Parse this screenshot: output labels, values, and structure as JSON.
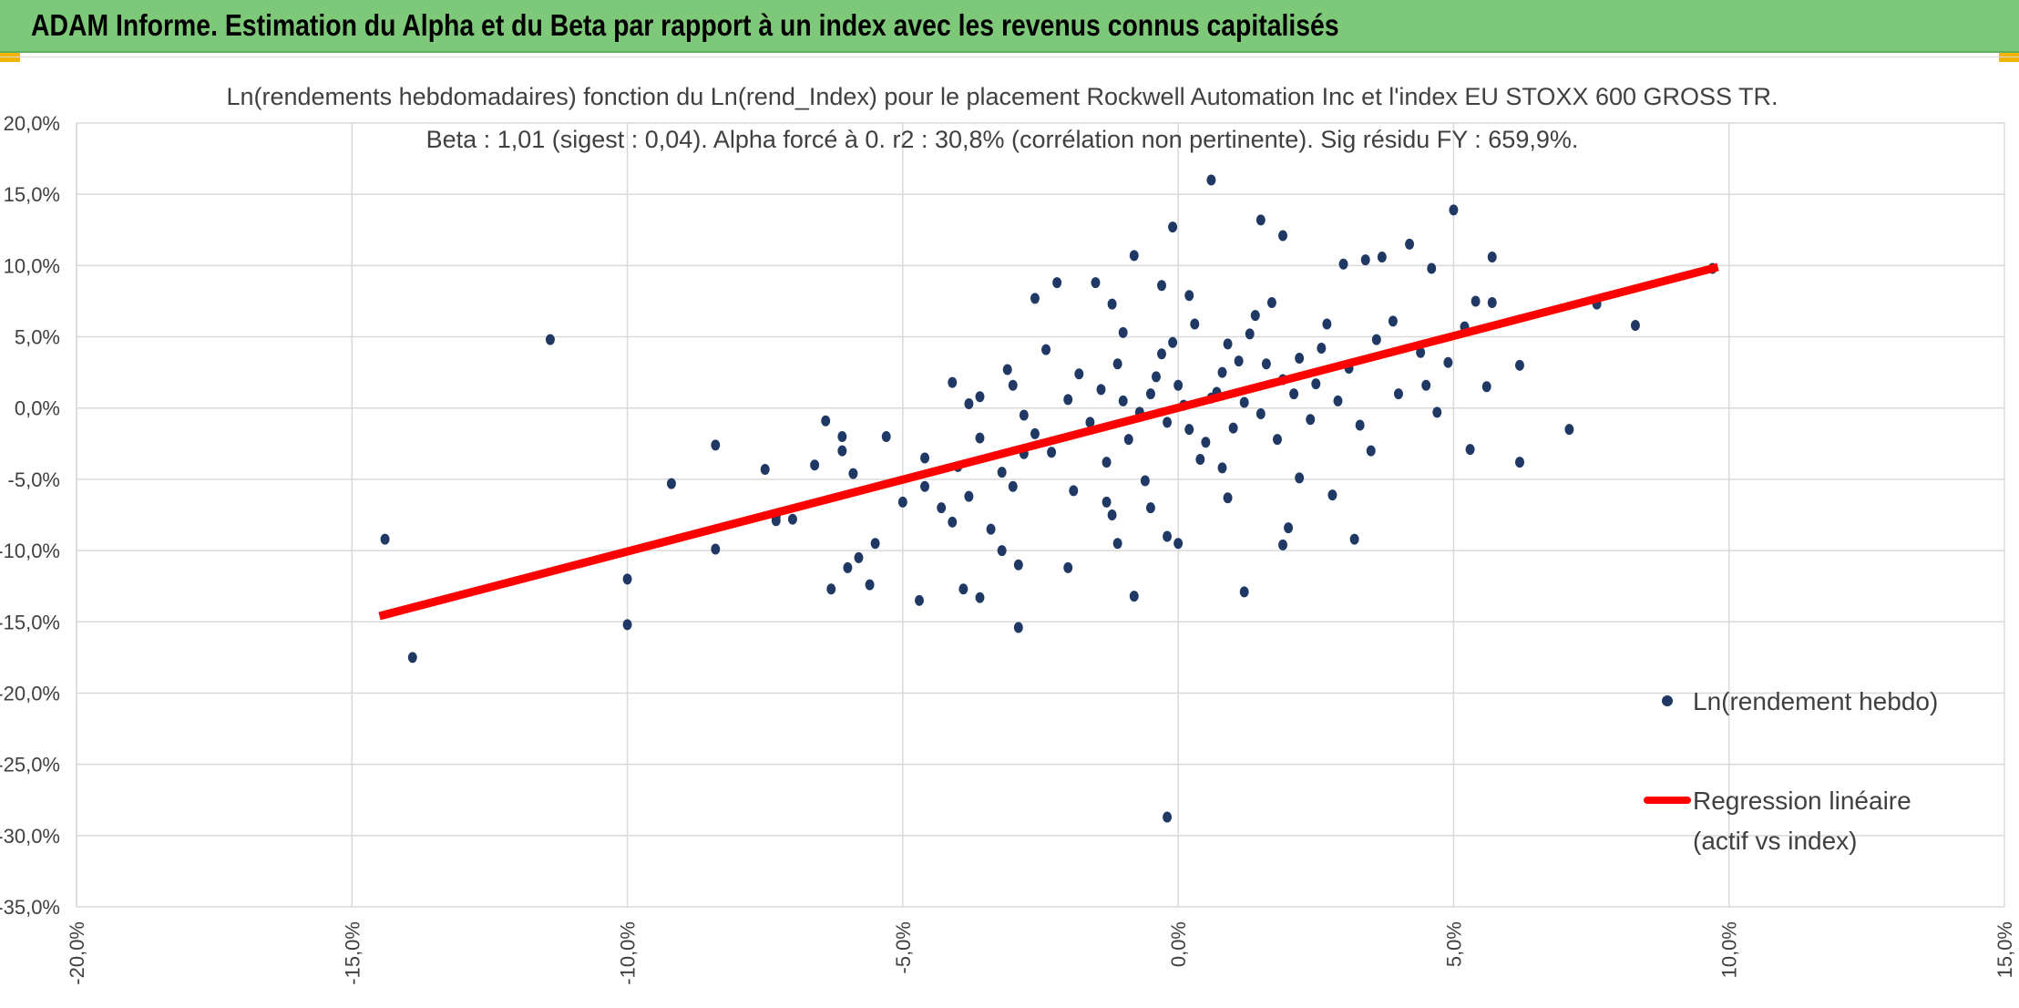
{
  "banner": {
    "title": "ADAM Informe. Estimation du Alpha et du Beta par rapport à un index avec les revenus connus capitalisés"
  },
  "colors": {
    "banner_bg": "#7ec87a",
    "points": "#1f3864",
    "regression": "#ff0000",
    "grid": "#d9d9d9",
    "accent": "#f2b600"
  },
  "chart_data": {
    "type": "scatter",
    "title_line1": "Ln(rendements hebdomadaires) fonction du Ln(rend_Index) pour le placement Rockwell Automation Inc et l'index EU STOXX 600 GROSS TR.",
    "title_line2": "Beta : 1,01 (sigest : 0,04). Alpha forcé à 0. r2 : 30,8% (corrélation non pertinente). Sig résidu FY : 659,9%.",
    "xlim": [
      -20,
      15
    ],
    "ylim": [
      -35,
      20
    ],
    "x_ticks": [
      -20,
      -15,
      -10,
      -5,
      0,
      5,
      10,
      15
    ],
    "y_ticks": [
      20,
      15,
      10,
      5,
      0,
      -5,
      -10,
      -15,
      -20,
      -25,
      -30,
      -35
    ],
    "x_tick_labels": [
      "-20,0%",
      "-15,0%",
      "-10,0%",
      "-5,0%",
      "0,0%",
      "5,0%",
      "10,0%",
      "15,0%"
    ],
    "y_tick_labels": [
      "20,0%",
      "15,0%",
      "10,0%",
      "5,0%",
      "0,0%",
      "-5,0%",
      "-10,0%",
      "-15,0%",
      "-20,0%",
      "-25,0%",
      "-30,0%",
      "-35,0%"
    ],
    "grid": true,
    "legend_position": "right",
    "series": [
      {
        "name": "Ln(rendement hebdo)",
        "kind": "scatter",
        "points": [
          [
            -14.4,
            -9.2
          ],
          [
            -13.9,
            -17.5
          ],
          [
            -11.4,
            4.8
          ],
          [
            -10.0,
            -12.0
          ],
          [
            -10.0,
            -15.2
          ],
          [
            -9.2,
            -5.3
          ],
          [
            -8.4,
            -2.6
          ],
          [
            -8.4,
            -9.9
          ],
          [
            -7.5,
            -4.3
          ],
          [
            -7.3,
            -7.6
          ],
          [
            -7.3,
            -7.9
          ],
          [
            -7.0,
            -7.8
          ],
          [
            -6.6,
            -4.0
          ],
          [
            -6.3,
            -12.7
          ],
          [
            -6.0,
            -11.2
          ],
          [
            -5.8,
            -10.5
          ],
          [
            -5.6,
            -12.4
          ],
          [
            -5.5,
            -9.5
          ],
          [
            -4.7,
            -13.5
          ],
          [
            -4.3,
            -7.0
          ],
          [
            -3.9,
            -12.7
          ],
          [
            -3.6,
            -13.3
          ],
          [
            -3.2,
            -10.0
          ],
          [
            -2.9,
            -15.4
          ],
          [
            -2.9,
            -11.0
          ],
          [
            -2.8,
            -3.2
          ],
          [
            -3.0,
            -5.5
          ],
          [
            -3.4,
            -8.5
          ],
          [
            -3.8,
            -6.2
          ],
          [
            -4.1,
            -8.0
          ],
          [
            -6.4,
            -0.9
          ],
          [
            -6.1,
            -3.0
          ],
          [
            -5.9,
            -4.6
          ],
          [
            -6.1,
            -2.0
          ],
          [
            -5.3,
            -2.0
          ],
          [
            -4.6,
            -3.5
          ],
          [
            -4.1,
            1.8
          ],
          [
            -3.6,
            0.8
          ],
          [
            -3.1,
            2.7
          ],
          [
            -2.6,
            7.7
          ],
          [
            -2.2,
            8.8
          ],
          [
            -1.5,
            8.8
          ],
          [
            -1.2,
            7.3
          ],
          [
            -1.0,
            5.3
          ],
          [
            -0.8,
            10.7
          ],
          [
            -0.3,
            8.6
          ],
          [
            -0.1,
            12.7
          ],
          [
            0.6,
            16.0
          ],
          [
            1.5,
            13.2
          ],
          [
            1.9,
            12.1
          ],
          [
            3.0,
            10.1
          ],
          [
            3.4,
            10.4
          ],
          [
            3.7,
            10.6
          ],
          [
            4.2,
            11.5
          ],
          [
            4.6,
            9.8
          ],
          [
            5.0,
            13.9
          ],
          [
            5.7,
            10.6
          ],
          [
            5.4,
            7.5
          ],
          [
            5.7,
            7.4
          ],
          [
            7.6,
            7.3
          ],
          [
            8.3,
            5.8
          ],
          [
            9.7,
            9.8
          ],
          [
            6.2,
            3.0
          ],
          [
            6.2,
            -3.8
          ],
          [
            7.1,
            -1.5
          ],
          [
            5.6,
            1.5
          ],
          [
            5.3,
            -2.9
          ],
          [
            4.9,
            3.2
          ],
          [
            2.8,
            -6.1
          ],
          [
            3.2,
            -9.2
          ],
          [
            2.0,
            -8.4
          ],
          [
            1.9,
            -9.6
          ],
          [
            1.2,
            -12.9
          ],
          [
            -0.8,
            -13.2
          ],
          [
            -1.1,
            -9.5
          ],
          [
            -1.2,
            -7.5
          ],
          [
            -0.2,
            -9.0
          ],
          [
            0.0,
            -9.5
          ],
          [
            -0.2,
            -28.7
          ],
          [
            -2.0,
            -11.2
          ],
          [
            -0.5,
            1.0
          ],
          [
            0.2,
            -1.5
          ],
          [
            0.8,
            2.5
          ],
          [
            1.2,
            0.4
          ],
          [
            -0.9,
            -2.2
          ],
          [
            1.6,
            3.1
          ],
          [
            2.1,
            1.0
          ],
          [
            -1.6,
            -1.0
          ],
          [
            0.4,
            -3.6
          ],
          [
            -0.3,
            3.8
          ],
          [
            1.0,
            -1.4
          ],
          [
            2.6,
            4.2
          ],
          [
            -2.0,
            0.6
          ],
          [
            0.9,
            4.5
          ],
          [
            -1.3,
            -3.8
          ],
          [
            1.8,
            -2.2
          ],
          [
            3.1,
            2.8
          ],
          [
            -0.6,
            -5.1
          ],
          [
            0.3,
            5.9
          ],
          [
            2.4,
            -0.8
          ],
          [
            -2.6,
            -1.8
          ],
          [
            1.4,
            6.5
          ],
          [
            -1.8,
            2.4
          ],
          [
            0.1,
            0.2
          ],
          [
            3.6,
            4.8
          ],
          [
            -0.2,
            -1.0
          ],
          [
            0.7,
            1.1
          ],
          [
            -1.0,
            0.5
          ],
          [
            1.5,
            -0.4
          ],
          [
            2.2,
            3.5
          ],
          [
            -3.2,
            -4.5
          ],
          [
            4.0,
            1.0
          ],
          [
            -0.4,
            2.2
          ],
          [
            0.5,
            -2.4
          ],
          [
            1.1,
            3.3
          ],
          [
            -1.4,
            1.3
          ],
          [
            2.9,
            0.5
          ],
          [
            -2.3,
            -3.1
          ],
          [
            0.6,
            0.7
          ],
          [
            -0.7,
            -0.3
          ],
          [
            1.9,
            2.0
          ],
          [
            -1.1,
            3.1
          ],
          [
            0.0,
            1.6
          ],
          [
            2.5,
            1.7
          ],
          [
            -2.8,
            -0.5
          ],
          [
            3.3,
            -1.2
          ],
          [
            -3.6,
            -2.1
          ],
          [
            4.4,
            3.9
          ],
          [
            -4.0,
            -4.1
          ],
          [
            0.8,
            -4.2
          ],
          [
            1.3,
            5.2
          ],
          [
            -0.1,
            4.6
          ],
          [
            2.7,
            5.9
          ],
          [
            -1.9,
            -5.8
          ],
          [
            3.9,
            6.1
          ],
          [
            -4.6,
            -5.5
          ],
          [
            4.5,
            1.6
          ],
          [
            -5.0,
            -6.6
          ],
          [
            5.2,
            5.7
          ],
          [
            -0.5,
            -7.0
          ],
          [
            0.9,
            -6.3
          ],
          [
            1.7,
            7.4
          ],
          [
            -1.3,
            -6.6
          ],
          [
            2.2,
            -4.9
          ],
          [
            3.5,
            -3.0
          ],
          [
            -2.4,
            4.1
          ],
          [
            -3.8,
            0.3
          ],
          [
            4.7,
            -0.3
          ],
          [
            -3.0,
            1.6
          ],
          [
            0.2,
            7.9
          ]
        ]
      },
      {
        "name": "Regression linéaire (actif vs index)",
        "kind": "line",
        "points": [
          [
            -14.5,
            -14.6
          ],
          [
            9.8,
            9.9
          ]
        ]
      }
    ],
    "legend": [
      {
        "label_line1": "Ln(rendement hebdo)",
        "label_line2": ""
      },
      {
        "label_line1": "Regression linéaire",
        "label_line2": "(actif vs index)"
      }
    ]
  }
}
